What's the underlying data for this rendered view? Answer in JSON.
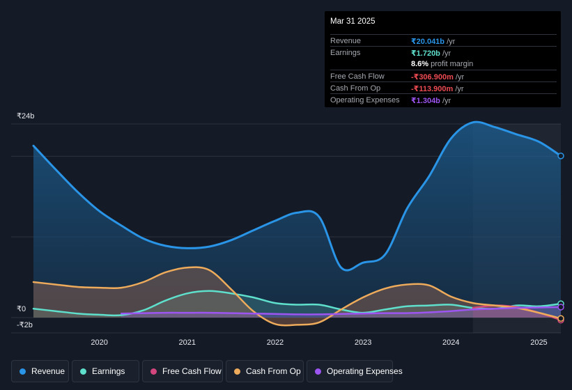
{
  "tooltip": {
    "date": "Mar 31 2025",
    "rows": [
      {
        "label": "Revenue",
        "value": "₹20.041b",
        "unit": " /yr",
        "color": "#2a94e6"
      },
      {
        "label": "Earnings",
        "value": "₹1.720b",
        "unit": " /yr",
        "color": "#5fe0cc"
      },
      {
        "label": "",
        "value": "8.6%",
        "unit": " profit margin",
        "color": "#ffffff"
      },
      {
        "label": "Free Cash Flow",
        "value": "-₹306.900m",
        "unit": " /yr",
        "color": "#ee4b53"
      },
      {
        "label": "Cash From Op",
        "value": "-₹113.900m",
        "unit": " /yr",
        "color": "#ee4b53"
      },
      {
        "label": "Operating Expenses",
        "value": "₹1.304b",
        "unit": " /yr",
        "color": "#9d55f2"
      }
    ]
  },
  "legend": [
    {
      "label": "Revenue",
      "color": "#2a94e6"
    },
    {
      "label": "Earnings",
      "color": "#5fe0cc"
    },
    {
      "label": "Free Cash Flow",
      "color": "#d2457d"
    },
    {
      "label": "Cash From Op",
      "color": "#eeab5b"
    },
    {
      "label": "Operating Expenses",
      "color": "#9d55f2"
    }
  ],
  "chart_data": {
    "type": "area",
    "y_unit": "₹b",
    "ylim": [
      -2,
      24
    ],
    "y_tick_labels": [
      {
        "value": 24,
        "label": "₹24b"
      },
      {
        "value": 0,
        "label": "₹0"
      },
      {
        "value": -2,
        "label": "-₹2b"
      }
    ],
    "xlim": [
      2019.25,
      2025.25
    ],
    "x_ticks": [
      2020,
      2021,
      2022,
      2023,
      2024,
      2025
    ],
    "x_tick_labels": [
      "2020",
      "2021",
      "2022",
      "2023",
      "2024",
      "2025"
    ],
    "grid": true,
    "highlight_range": [
      2024.25,
      2025.25
    ],
    "series": [
      {
        "name": "Revenue",
        "color": "#2a94e6",
        "x": [
          2019.25,
          2019.5,
          2019.75,
          2020.0,
          2020.25,
          2020.5,
          2020.75,
          2021.0,
          2021.25,
          2021.5,
          2021.75,
          2022.0,
          2022.25,
          2022.5,
          2022.75,
          2023.0,
          2023.25,
          2023.5,
          2023.75,
          2024.0,
          2024.25,
          2024.5,
          2024.75,
          2025.0,
          2025.25
        ],
        "y": [
          21.3,
          18.4,
          15.6,
          13.2,
          11.4,
          9.8,
          8.9,
          8.6,
          8.8,
          9.6,
          10.8,
          12.0,
          13.0,
          12.5,
          6.2,
          6.8,
          7.8,
          13.5,
          17.5,
          22.2,
          24.2,
          23.6,
          22.7,
          21.8,
          20.04
        ]
      },
      {
        "name": "Earnings",
        "color": "#5fe0cc",
        "x": [
          2019.25,
          2019.5,
          2019.75,
          2020.0,
          2020.25,
          2020.5,
          2020.75,
          2021.0,
          2021.25,
          2021.5,
          2021.75,
          2022.0,
          2022.25,
          2022.5,
          2022.75,
          2023.0,
          2023.25,
          2023.5,
          2023.75,
          2024.0,
          2024.25,
          2024.5,
          2024.75,
          2025.0,
          2025.25
        ],
        "y": [
          1.1,
          0.8,
          0.5,
          0.35,
          0.3,
          0.9,
          2.1,
          3.0,
          3.3,
          3.0,
          2.5,
          1.8,
          1.6,
          1.6,
          1.0,
          0.6,
          1.0,
          1.4,
          1.5,
          1.6,
          1.2,
          1.1,
          1.5,
          1.4,
          1.72
        ]
      },
      {
        "name": "Free Cash Flow",
        "color": "#d2457d",
        "x": [
          2024.25,
          2024.5,
          2024.75,
          2025.0,
          2025.25
        ],
        "y": [
          1.2,
          1.5,
          1.3,
          0.6,
          -0.31
        ]
      },
      {
        "name": "Cash From Op",
        "color": "#eeab5b",
        "x": [
          2019.25,
          2019.5,
          2019.75,
          2020.0,
          2020.25,
          2020.5,
          2020.75,
          2021.0,
          2021.25,
          2021.5,
          2021.75,
          2022.0,
          2022.25,
          2022.5,
          2022.75,
          2023.0,
          2023.25,
          2023.5,
          2023.75,
          2024.0,
          2024.25,
          2024.5,
          2024.75,
          2025.0,
          2025.25
        ],
        "y": [
          4.4,
          4.1,
          3.8,
          3.7,
          3.7,
          4.4,
          5.6,
          6.2,
          5.9,
          3.5,
          0.8,
          -0.8,
          -0.9,
          -0.6,
          1.0,
          2.5,
          3.6,
          4.1,
          4.0,
          2.6,
          1.8,
          1.5,
          1.2,
          0.6,
          -0.11
        ]
      },
      {
        "name": "Operating Expenses",
        "color": "#9d55f2",
        "x": [
          2020.25,
          2020.5,
          2020.75,
          2021.0,
          2021.25,
          2021.5,
          2021.75,
          2022.0,
          2022.25,
          2022.5,
          2022.75,
          2023.0,
          2023.25,
          2023.5,
          2023.75,
          2024.0,
          2024.25,
          2024.5,
          2024.75,
          2025.0,
          2025.25
        ],
        "y": [
          0.5,
          0.55,
          0.6,
          0.6,
          0.6,
          0.55,
          0.5,
          0.45,
          0.4,
          0.4,
          0.45,
          0.5,
          0.55,
          0.55,
          0.65,
          0.8,
          1.0,
          1.1,
          1.2,
          1.25,
          1.3
        ]
      }
    ]
  }
}
